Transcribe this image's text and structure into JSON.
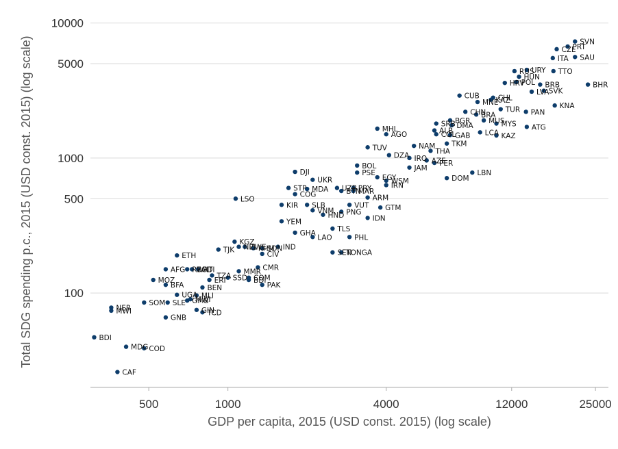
{
  "colors": {
    "point": "#0e3d6b",
    "grid": "#d9d9d9",
    "axis": "#aaaaaa"
  },
  "chart_data": {
    "type": "scatter",
    "title": "",
    "xlabel": "GDP per capita, 2015 (USD const. 2015) (log scale)",
    "ylabel": "Total SDG spending p.c., 2015 (USD const. 2015) (log scale)",
    "x_scale": "log",
    "y_scale": "log",
    "xlim": [
      300,
      28000
    ],
    "ylim": [
      20,
      12000
    ],
    "x_ticks": [
      500,
      1000,
      4000,
      12000,
      25000
    ],
    "x_tick_labels": [
      "500",
      "1000",
      "4000",
      "12000",
      "25000"
    ],
    "y_ticks": [
      100,
      500,
      1000,
      5000,
      10000
    ],
    "y_tick_labels": [
      "100",
      "500",
      "1000",
      "5000",
      "10000"
    ],
    "grid": "horizontal",
    "legend": "none",
    "points": [
      {
        "label": "SVN",
        "x": 20900,
        "y": 7300
      },
      {
        "label": "PRT",
        "x": 19600,
        "y": 6700
      },
      {
        "label": "CZE",
        "x": 17800,
        "y": 6400
      },
      {
        "label": "SAU",
        "x": 20900,
        "y": 5600
      },
      {
        "label": "ITA",
        "x": 17200,
        "y": 5500
      },
      {
        "label": "TTO",
        "x": 17300,
        "y": 4400
      },
      {
        "label": "BHR",
        "x": 23400,
        "y": 3500
      },
      {
        "label": "URY",
        "x": 13700,
        "y": 4500
      },
      {
        "label": "RUS",
        "x": 12300,
        "y": 4400
      },
      {
        "label": "HUN",
        "x": 12800,
        "y": 4000
      },
      {
        "label": "HRV",
        "x": 11300,
        "y": 3600
      },
      {
        "label": "POL",
        "x": 12500,
        "y": 3650
      },
      {
        "label": "BRB",
        "x": 15400,
        "y": 3500
      },
      {
        "label": "SVK",
        "x": 15900,
        "y": 3150
      },
      {
        "label": "KNA",
        "x": 17500,
        "y": 2450
      },
      {
        "label": "LVA",
        "x": 14300,
        "y": 3100
      },
      {
        "label": "CUB",
        "x": 7600,
        "y": 2900
      },
      {
        "label": "KAZ",
        "x": 10000,
        "y": 2700
      },
      {
        "label": "MNE",
        "x": 8900,
        "y": 2600
      },
      {
        "label": "CHL",
        "x": 10200,
        "y": 2800
      },
      {
        "label": "TUR",
        "x": 10900,
        "y": 2300
      },
      {
        "label": "PAN",
        "x": 13600,
        "y": 2200
      },
      {
        "label": "CHN",
        "x": 8000,
        "y": 2200
      },
      {
        "label": "BRA",
        "x": 8800,
        "y": 2100
      },
      {
        "label": "BGR",
        "x": 7000,
        "y": 1900
      },
      {
        "label": "SRB",
        "x": 6200,
        "y": 1800
      },
      {
        "label": "MUS",
        "x": 9400,
        "y": 1900
      },
      {
        "label": "DMA",
        "x": 7100,
        "y": 1750
      },
      {
        "label": "MYS",
        "x": 10500,
        "y": 1800
      },
      {
        "label": "ALB",
        "x": 6100,
        "y": 1600
      },
      {
        "label": "COL",
        "x": 6200,
        "y": 1500
      },
      {
        "label": "LCA",
        "x": 9100,
        "y": 1550
      },
      {
        "label": "GAB",
        "x": 7000,
        "y": 1480
      },
      {
        "label": "ATG",
        "x": 13700,
        "y": 1700
      },
      {
        "label": "KAZ",
        "x": 10500,
        "y": 1470
      },
      {
        "label": "MHL",
        "x": 3700,
        "y": 1650
      },
      {
        "label": "AGO",
        "x": 4000,
        "y": 1500
      },
      {
        "label": "TKM",
        "x": 6800,
        "y": 1280
      },
      {
        "label": "NAM",
        "x": 5100,
        "y": 1230
      },
      {
        "label": "TUV",
        "x": 3400,
        "y": 1200
      },
      {
        "label": "THA",
        "x": 5900,
        "y": 1130
      },
      {
        "label": "DZA",
        "x": 4100,
        "y": 1050
      },
      {
        "label": "IRQ",
        "x": 4900,
        "y": 1000
      },
      {
        "label": "AZE",
        "x": 5700,
        "y": 960
      },
      {
        "label": "PER",
        "x": 6100,
        "y": 920
      },
      {
        "label": "BOL",
        "x": 3100,
        "y": 880
      },
      {
        "label": "JAM",
        "x": 4900,
        "y": 850
      },
      {
        "label": "LBN",
        "x": 8500,
        "y": 780
      },
      {
        "label": "DJI",
        "x": 1800,
        "y": 790
      },
      {
        "label": "PSE",
        "x": 3100,
        "y": 780
      },
      {
        "label": "EGY",
        "x": 3700,
        "y": 720
      },
      {
        "label": "DOM",
        "x": 6800,
        "y": 710
      },
      {
        "label": "UKR",
        "x": 2100,
        "y": 690
      },
      {
        "label": "WSM",
        "x": 4000,
        "y": 680
      },
      {
        "label": "IRN",
        "x": 4000,
        "y": 630
      },
      {
        "label": "STP",
        "x": 1700,
        "y": 600
      },
      {
        "label": "MDA",
        "x": 2000,
        "y": 590
      },
      {
        "label": "UZB",
        "x": 2600,
        "y": 600
      },
      {
        "label": "PRY",
        "x": 3000,
        "y": 600
      },
      {
        "label": "BTN",
        "x": 2700,
        "y": 570
      },
      {
        "label": "MAR",
        "x": 3000,
        "y": 570
      },
      {
        "label": "COG",
        "x": 1800,
        "y": 540
      },
      {
        "label": "ARM",
        "x": 3400,
        "y": 510
      },
      {
        "label": "LSO",
        "x": 1070,
        "y": 500
      },
      {
        "label": "KIR",
        "x": 1600,
        "y": 450
      },
      {
        "label": "SLB",
        "x": 2000,
        "y": 450
      },
      {
        "label": "VUT",
        "x": 2900,
        "y": 450
      },
      {
        "label": "GTM",
        "x": 3800,
        "y": 430
      },
      {
        "label": "VNM",
        "x": 2100,
        "y": 410
      },
      {
        "label": "PNG",
        "x": 2700,
        "y": 400
      },
      {
        "label": "HND",
        "x": 2300,
        "y": 380
      },
      {
        "label": "IDN",
        "x": 3400,
        "y": 360
      },
      {
        "label": "YEM",
        "x": 1600,
        "y": 340
      },
      {
        "label": "TLS",
        "x": 2500,
        "y": 300
      },
      {
        "label": "GHA",
        "x": 1800,
        "y": 280
      },
      {
        "label": "LAO",
        "x": 2100,
        "y": 260
      },
      {
        "label": "PHL",
        "x": 2900,
        "y": 260
      },
      {
        "label": "KGZ",
        "x": 1060,
        "y": 240
      },
      {
        "label": "NPL",
        "x": 1100,
        "y": 220
      },
      {
        "label": "ZWE",
        "x": 1160,
        "y": 220
      },
      {
        "label": "IND",
        "x": 1550,
        "y": 220
      },
      {
        "label": "SDN",
        "x": 1350,
        "y": 215
      },
      {
        "label": "KHM",
        "x": 1250,
        "y": 215
      },
      {
        "label": "TJK",
        "x": 920,
        "y": 210
      },
      {
        "label": "CIV",
        "x": 1350,
        "y": 195
      },
      {
        "label": "SEN",
        "x": 2500,
        "y": 200
      },
      {
        "label": "TONGA",
        "x": 2700,
        "y": 200
      },
      {
        "label": "ETH",
        "x": 640,
        "y": 190
      },
      {
        "label": "CMR",
        "x": 1300,
        "y": 155
      },
      {
        "label": "AFG",
        "x": 580,
        "y": 150
      },
      {
        "label": "RWA",
        "x": 700,
        "y": 150
      },
      {
        "label": "BGD",
        "x": 730,
        "y": 150
      },
      {
        "label": "HTI",
        "x": 770,
        "y": 150
      },
      {
        "label": "MMR",
        "x": 1100,
        "y": 145
      },
      {
        "label": "TZA",
        "x": 870,
        "y": 135
      },
      {
        "label": "SSD",
        "x": 1000,
        "y": 130
      },
      {
        "label": "COM",
        "x": 1200,
        "y": 130
      },
      {
        "label": "ERI",
        "x": 850,
        "y": 125
      },
      {
        "label": "BDI",
        "x": 1200,
        "y": 125
      },
      {
        "label": "MOZ",
        "x": 520,
        "y": 125
      },
      {
        "label": "PAK",
        "x": 1350,
        "y": 115
      },
      {
        "label": "BFA",
        "x": 580,
        "y": 115
      },
      {
        "label": "BEN",
        "x": 800,
        "y": 110
      },
      {
        "label": "UGA",
        "x": 640,
        "y": 97
      },
      {
        "label": "MLI",
        "x": 760,
        "y": 96
      },
      {
        "label": "GMB",
        "x": 700,
        "y": 88
      },
      {
        "label": "MWI",
        "x": 720,
        "y": 90
      },
      {
        "label": "SOM",
        "x": 480,
        "y": 85
      },
      {
        "label": "SLE",
        "x": 590,
        "y": 85
      },
      {
        "label": "NER",
        "x": 360,
        "y": 78
      },
      {
        "label": "MWI",
        "x": 360,
        "y": 74
      },
      {
        "label": "GIN",
        "x": 760,
        "y": 75
      },
      {
        "label": "TCD",
        "x": 800,
        "y": 72
      },
      {
        "label": "GNB",
        "x": 580,
        "y": 66
      },
      {
        "label": "BDI",
        "x": 310,
        "y": 47
      },
      {
        "label": "MDG",
        "x": 410,
        "y": 40
      },
      {
        "label": "COD",
        "x": 480,
        "y": 39
      },
      {
        "label": "CAF",
        "x": 380,
        "y": 26
      }
    ]
  }
}
